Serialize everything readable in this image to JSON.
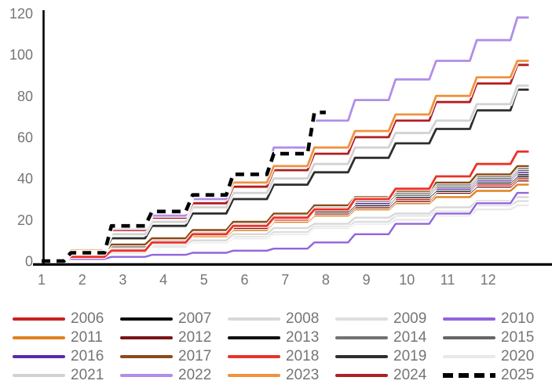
{
  "chart": {
    "background_color": "#ffffff",
    "axis_color": "#000000",
    "tick_label_color": "#757575",
    "y_ticks": [
      0,
      20,
      40,
      60,
      80,
      100,
      120
    ],
    "x_ticks": [
      1,
      2,
      3,
      4,
      5,
      6,
      7,
      8,
      9,
      10,
      11,
      12
    ],
    "grid": "off",
    "legend_position": "bottom"
  },
  "chart_data": {
    "type": "line",
    "title": "",
    "xlabel": "",
    "ylabel": "",
    "xlim": [
      1,
      13
    ],
    "ylim": [
      0,
      120
    ],
    "x": [
      1,
      2,
      3,
      4,
      5,
      6,
      7,
      8,
      9,
      10,
      11,
      12,
      13
    ],
    "x_unit": "month",
    "series": [
      {
        "name": "2006",
        "color": "#c9211e",
        "dashed": false,
        "values": [
          0,
          3,
          7,
          10,
          14,
          17,
          20,
          24,
          27,
          30,
          34,
          37,
          40
        ]
      },
      {
        "name": "2007",
        "color": "#0d0d0d",
        "dashed": false,
        "values": [
          0,
          3,
          7,
          11,
          14,
          18,
          21,
          25,
          28,
          32,
          35,
          39,
          42
        ]
      },
      {
        "name": "2008",
        "color": "#d8d8d8",
        "dashed": false,
        "values": [
          0,
          2,
          5,
          8,
          10,
          13,
          16,
          18,
          21,
          23,
          26,
          29,
          31
        ]
      },
      {
        "name": "2009",
        "color": "#dedede",
        "dashed": false,
        "values": [
          0,
          2,
          5,
          7,
          10,
          12,
          14,
          17,
          19,
          22,
          24,
          27,
          29
        ]
      },
      {
        "name": "2010",
        "color": "#9165dc",
        "dashed": false,
        "values": [
          0,
          1,
          2,
          3,
          4,
          5,
          6,
          9,
          13,
          18,
          23,
          28,
          33
        ]
      },
      {
        "name": "2011",
        "color": "#e0811f",
        "dashed": false,
        "values": [
          0,
          3,
          6,
          9,
          12,
          15,
          19,
          22,
          25,
          28,
          31,
          34,
          37
        ]
      },
      {
        "name": "2012",
        "color": "#7b1416",
        "dashed": false,
        "values": [
          0,
          3,
          6,
          10,
          13,
          16,
          20,
          23,
          26,
          29,
          33,
          36,
          39
        ]
      },
      {
        "name": "2013",
        "color": "#111111",
        "dashed": false,
        "values": [
          0,
          3,
          7,
          10,
          14,
          17,
          21,
          24,
          27,
          31,
          34,
          38,
          41
        ]
      },
      {
        "name": "2014",
        "color": "#737373",
        "dashed": false,
        "values": [
          0,
          4,
          7,
          11,
          15,
          19,
          22,
          26,
          30,
          33,
          37,
          41,
          45
        ]
      },
      {
        "name": "2015",
        "color": "#666666",
        "dashed": false,
        "values": [
          0,
          4,
          7,
          11,
          14,
          18,
          22,
          25,
          29,
          32,
          36,
          40,
          44
        ]
      },
      {
        "name": "2016",
        "color": "#5b2ca8",
        "dashed": false,
        "values": [
          0,
          3,
          7,
          11,
          14,
          18,
          21,
          25,
          28,
          32,
          35,
          39,
          43
        ]
      },
      {
        "name": "2017",
        "color": "#8c4a17",
        "dashed": false,
        "values": [
          0,
          4,
          8,
          11,
          15,
          19,
          23,
          27,
          31,
          34,
          38,
          42,
          46
        ]
      },
      {
        "name": "2018",
        "color": "#ea3328",
        "dashed": false,
        "values": [
          0,
          2,
          5,
          9,
          13,
          17,
          21,
          25,
          30,
          35,
          41,
          47,
          53
        ]
      },
      {
        "name": "2019",
        "color": "#2e2e2e",
        "dashed": false,
        "values": [
          0,
          4,
          11,
          17,
          23,
          30,
          37,
          43,
          50,
          57,
          64,
          73,
          83
        ]
      },
      {
        "name": "2020",
        "color": "#e9e9e9",
        "dashed": false,
        "values": [
          0,
          2,
          4,
          7,
          9,
          11,
          13,
          16,
          18,
          20,
          22,
          25,
          27
        ]
      },
      {
        "name": "2021",
        "color": "#d2d2d2",
        "dashed": false,
        "values": [
          0,
          5,
          13,
          19,
          26,
          33,
          40,
          47,
          55,
          62,
          68,
          76,
          85
        ]
      },
      {
        "name": "2022",
        "color": "#b18ee8",
        "dashed": false,
        "values": [
          0,
          4,
          16,
          22,
          30,
          42,
          55,
          68,
          78,
          88,
          97,
          107,
          118
        ]
      },
      {
        "name": "2023",
        "color": "#f0923e",
        "dashed": false,
        "values": [
          0,
          5,
          17,
          23,
          30,
          38,
          46,
          55,
          63,
          71,
          80,
          89,
          97
        ]
      },
      {
        "name": "2024",
        "color": "#b21e22",
        "dashed": false,
        "values": [
          0,
          4,
          15,
          21,
          28,
          36,
          44,
          52,
          60,
          68,
          77,
          86,
          95
        ]
      },
      {
        "name": "2025",
        "color": "#000000",
        "dashed": true,
        "values": [
          0,
          4,
          17,
          24,
          32,
          42,
          52,
          72
        ]
      }
    ]
  }
}
